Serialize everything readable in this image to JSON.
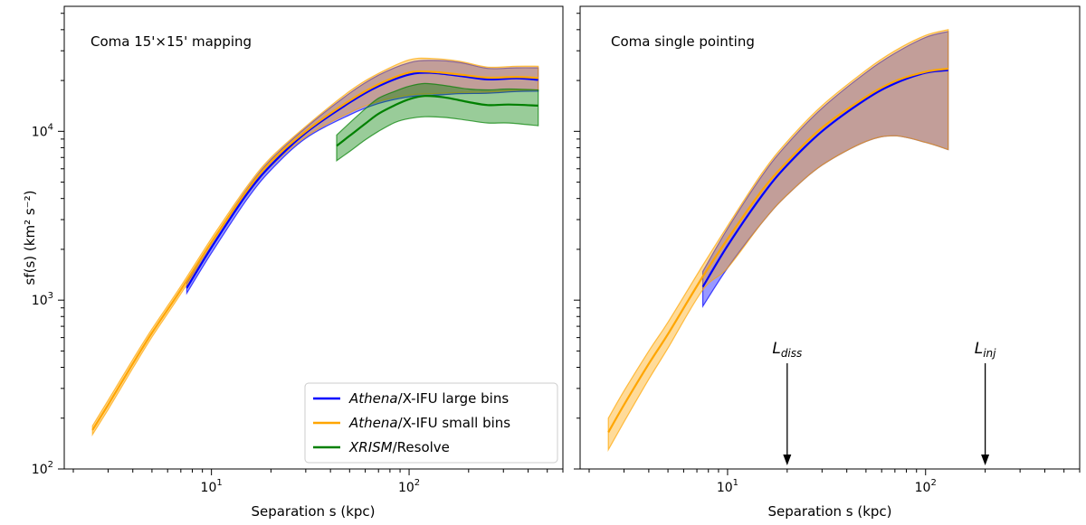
{
  "chart_data": [
    {
      "type": "line",
      "title": "Coma 15'×15' mapping",
      "xlabel": "Separation s (kpc)",
      "ylabel": "sf(s) (km² s⁻²)",
      "xscale": "log",
      "yscale": "log",
      "xlim": [
        1.8,
        600
      ],
      "ylim": [
        100,
        55000
      ],
      "x_major_ticks": [
        10,
        100
      ],
      "y_major_ticks": [
        100,
        1000,
        10000
      ],
      "legend_position": "lower right",
      "series": [
        {
          "name": "Athena/X-IFU large bins",
          "name_italic": "Athena",
          "name_rest": "/X-IFU large bins",
          "color": "#0000ff",
          "x": [
            7.5,
            10,
            15,
            20,
            30,
            50,
            70,
            100,
            130,
            180,
            250,
            350,
            450
          ],
          "y": [
            1180,
            2050,
            4200,
            6300,
            9800,
            14800,
            18500,
            21700,
            22200,
            21300,
            20300,
            20600,
            20200
          ],
          "lower": [
            1100,
            1900,
            3900,
            5900,
            9100,
            12500,
            14600,
            16000,
            16300,
            16700,
            16800,
            17200,
            17300
          ],
          "upper": [
            1260,
            2200,
            4500,
            6800,
            10500,
            16800,
            21500,
            25500,
            26300,
            25600,
            23600,
            23800,
            23800
          ]
        },
        {
          "name": "Athena/X-IFU small bins",
          "name_italic": "Athena",
          "name_rest": "/X-IFU small bins",
          "color": "#ffa500",
          "x": [
            2.5,
            3,
            4,
            5,
            7,
            10,
            15,
            20,
            30,
            50,
            70,
            100,
            130,
            180,
            250,
            350,
            450
          ],
          "y": [
            170,
            240,
            420,
            640,
            1150,
            2200,
            4400,
            6600,
            10000,
            15200,
            19000,
            22300,
            22500,
            21700,
            20800,
            21000,
            20700
          ],
          "lower": [
            160,
            225,
            395,
            605,
            1090,
            2080,
            4150,
            6200,
            9300,
            12900,
            15000,
            16400,
            16700,
            17000,
            17100,
            17500,
            17600
          ],
          "upper": [
            180,
            255,
            445,
            675,
            1210,
            2320,
            4650,
            7000,
            10700,
            17300,
            22000,
            26500,
            27000,
            26000,
            24000,
            24300,
            24300
          ]
        },
        {
          "name": "XRISM/Resolve",
          "name_italic": "XRISM",
          "name_rest": "/Resolve",
          "color": "#008000",
          "x": [
            43,
            50,
            60,
            70,
            85,
            100,
            120,
            150,
            200,
            250,
            320,
            450
          ],
          "y": [
            8200,
            9400,
            11100,
            12700,
            14300,
            15500,
            16200,
            15900,
            14900,
            14300,
            14400,
            14200
          ],
          "lower": [
            6700,
            7600,
            8900,
            10000,
            11300,
            11900,
            12200,
            12100,
            11600,
            11200,
            11200,
            10800
          ],
          "upper": [
            9500,
            11200,
            13600,
            15700,
            17300,
            18500,
            19200,
            18700,
            17800,
            17600,
            17800,
            17600
          ]
        }
      ]
    },
    {
      "type": "line",
      "title": "Coma single pointing",
      "xlabel": "Separation s (kpc)",
      "xscale": "log",
      "yscale": "log",
      "xlim": [
        1.8,
        600
      ],
      "ylim": [
        100,
        55000
      ],
      "x_major_ticks": [
        10,
        100
      ],
      "series": [
        {
          "name": "Athena/X-IFU large bins",
          "color": "#0000ff",
          "x": [
            7.5,
            10,
            15,
            20,
            30,
            50,
            70,
            100,
            130
          ],
          "y": [
            1200,
            2100,
            4200,
            6300,
            10000,
            15500,
            19200,
            22200,
            23000
          ],
          "lower": [
            920,
            1550,
            2900,
            4200,
            6300,
            8700,
            9400,
            8600,
            7800
          ],
          "upper": [
            1480,
            2650,
            5500,
            8400,
            13700,
            22300,
            29000,
            36000,
            39000
          ]
        },
        {
          "name": "Athena/X-IFU small bins",
          "color": "#ffa500",
          "x": [
            2.5,
            3,
            4,
            5,
            7.5,
            10,
            15,
            20,
            30,
            50,
            70,
            100,
            130
          ],
          "y": [
            165,
            240,
            420,
            630,
            1380,
            2300,
            4500,
            6600,
            10500,
            16000,
            19800,
            22500,
            23500
          ],
          "lower": [
            130,
            190,
            340,
            520,
            1150,
            1550,
            2900,
            4200,
            6300,
            8700,
            9400,
            8600,
            7800
          ],
          "upper": [
            200,
            290,
            500,
            740,
            1610,
            2750,
            5700,
            8700,
            14200,
            23000,
            30000,
            37000,
            40000
          ]
        }
      ],
      "annotations": [
        {
          "base": "L",
          "sub": "diss",
          "x": 20
        },
        {
          "base": "L",
          "sub": "inj",
          "x": 200
        }
      ]
    }
  ]
}
